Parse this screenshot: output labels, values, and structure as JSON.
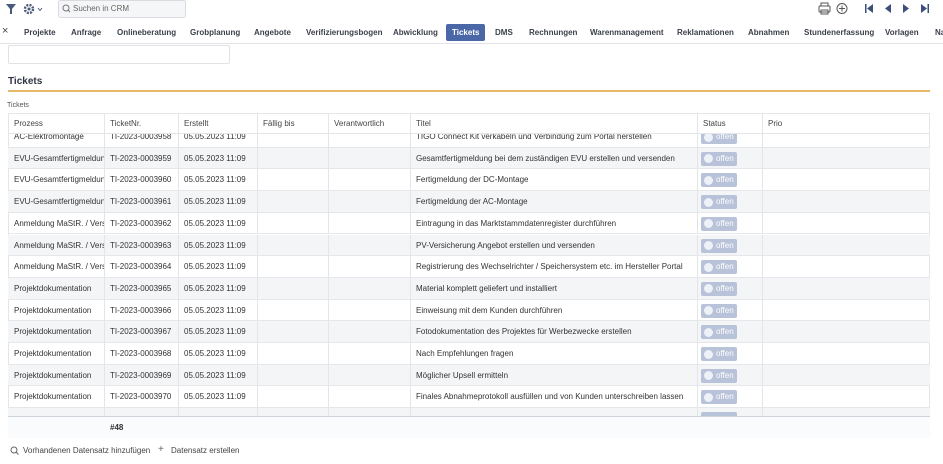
{
  "toolbar": {
    "search_placeholder": "Suchen in CRM"
  },
  "tabs": {
    "items": [
      "Projekte",
      "Anfrage",
      "Onlineberatung",
      "Grobplanung",
      "Angebote",
      "Verifizierungsbogen",
      "Abwicklung",
      "Tickets",
      "DMS",
      "Rechnungen",
      "Warenmanagement",
      "Reklamationen",
      "Abnahmen",
      "Stundenerfassung",
      "Vorlagen",
      "Na"
    ],
    "active": "Tickets"
  },
  "section": {
    "title": "Tickets",
    "table_label": "Tickets"
  },
  "table": {
    "columns": [
      "Prozess",
      "TicketNr.",
      "Erstellt",
      "Fällig bis",
      "Verantwortlich",
      "Titel",
      "Status",
      "Prio"
    ],
    "rows": [
      {
        "prozess": "AC-Elektromontage",
        "ticket_nr": "TI-2023-0003958",
        "erstellt": "05.05.2023 11:09",
        "titel": "TIGO Connect Kit verkabeln und Verbindung zum Portal herstellen",
        "status": "offen"
      },
      {
        "prozess": "EVU-Gesamtfertigmeldung",
        "ticket_nr": "TI-2023-0003959",
        "erstellt": "05.05.2023 11:09",
        "titel": "Gesamtfertigmeldung bei dem zuständigen EVU erstellen und versenden",
        "status": "offen"
      },
      {
        "prozess": "EVU-Gesamtfertigmeldung",
        "ticket_nr": "TI-2023-0003960",
        "erstellt": "05.05.2023 11:09",
        "titel": "Fertigmeldung der DC-Montage",
        "status": "offen"
      },
      {
        "prozess": "EVU-Gesamtfertigmeldung",
        "ticket_nr": "TI-2023-0003961",
        "erstellt": "05.05.2023 11:09",
        "titel": "Fertigmeldung der AC-Montage",
        "status": "offen"
      },
      {
        "prozess": "Anmeldung MaStR. / Versic",
        "ticket_nr": "TI-2023-0003962",
        "erstellt": "05.05.2023 11:09",
        "titel": "Eintragung in das Marktstammdatenregister durchführen",
        "status": "offen"
      },
      {
        "prozess": "Anmeldung MaStR. / Versic",
        "ticket_nr": "TI-2023-0003963",
        "erstellt": "05.05.2023 11:09",
        "titel": "PV-Versicherung Angebot erstellen und versenden",
        "status": "offen"
      },
      {
        "prozess": "Anmeldung MaStR. / Versic",
        "ticket_nr": "TI-2023-0003964",
        "erstellt": "05.05.2023 11:09",
        "titel": "Registrierung des Wechselrichter / Speichersystem etc. im Hersteller Portal",
        "status": "offen"
      },
      {
        "prozess": "Projektdokumentation",
        "ticket_nr": "TI-2023-0003965",
        "erstellt": "05.05.2023 11:09",
        "titel": "Material komplett geliefert und installiert",
        "status": "offen"
      },
      {
        "prozess": "Projektdokumentation",
        "ticket_nr": "TI-2023-0003966",
        "erstellt": "05.05.2023 11:09",
        "titel": "Einweisung mit dem Kunden durchführen",
        "status": "offen"
      },
      {
        "prozess": "Projektdokumentation",
        "ticket_nr": "TI-2023-0003967",
        "erstellt": "05.05.2023 11:09",
        "titel": "Fotodokumentation des Projektes für Werbezwecke erstellen",
        "status": "offen"
      },
      {
        "prozess": "Projektdokumentation",
        "ticket_nr": "TI-2023-0003968",
        "erstellt": "05.05.2023 11:09",
        "titel": "Nach Empfehlungen fragen",
        "status": "offen"
      },
      {
        "prozess": "Projektdokumentation",
        "ticket_nr": "TI-2023-0003969",
        "erstellt": "05.05.2023 11:09",
        "titel": "Möglicher Upsell ermitteln",
        "status": "offen"
      },
      {
        "prozess": "Projektdokumentation",
        "ticket_nr": "TI-2023-0003970",
        "erstellt": "05.05.2023 11:09",
        "titel": "Finales Abnahmeprotokoll ausfüllen und von Kunden unterschreiben lassen",
        "status": "offen"
      }
    ],
    "count": "#48"
  },
  "footer": {
    "add_existing": "Vorhandenen Datensatz hinzufügen",
    "create": "Datensatz erstellen"
  }
}
